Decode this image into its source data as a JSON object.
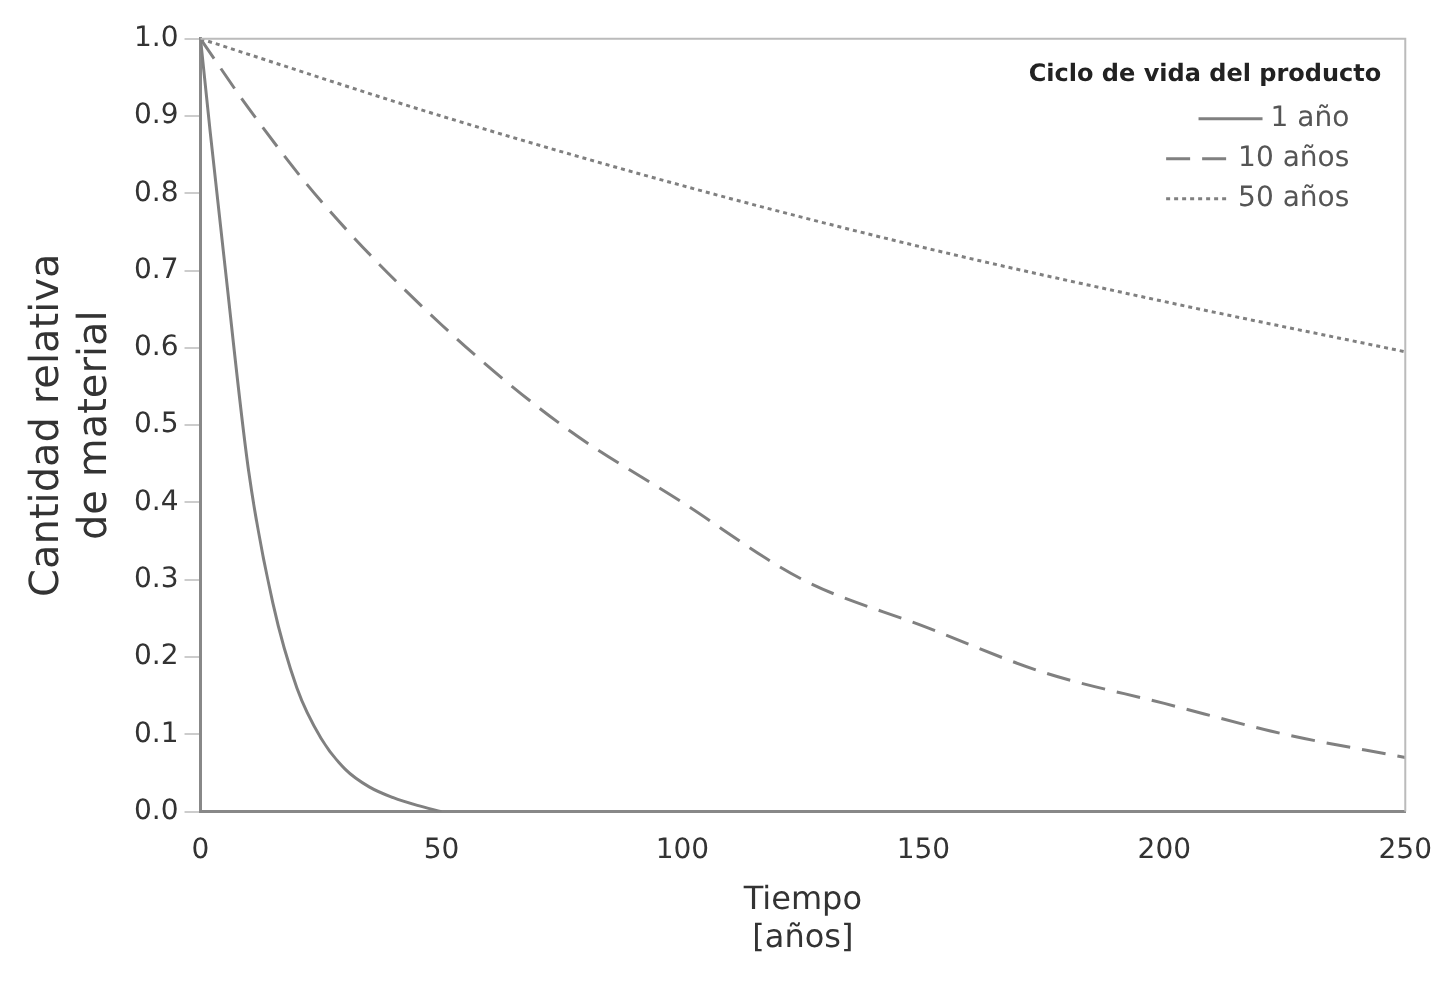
{
  "chart_data": {
    "type": "line",
    "xlabel": "Tiempo\n[años]",
    "ylabel": "Cantidad relativa\nde material",
    "legend_title": "Ciclo de vida del producto",
    "legend": "top right",
    "marker": "none",
    "grid": false,
    "xlim": [
      0,
      250
    ],
    "xticks": [
      0,
      50,
      100,
      150,
      200,
      250
    ],
    "ylim": [
      0,
      1
    ],
    "yticks": [
      {
        "value": 0,
        "label": "0.0"
      },
      {
        "value": 0.1,
        "label": "0.1"
      },
      {
        "value": 0.2,
        "label": "0.2"
      },
      {
        "value": 0.3,
        "label": "0.3"
      },
      {
        "value": 0.4,
        "label": "0.4"
      },
      {
        "value": 0.5,
        "label": "0.5"
      },
      {
        "value": 0.6,
        "label": "0.6"
      },
      {
        "value": 0.7,
        "label": "0.7"
      },
      {
        "value": 0.8,
        "label": "0.8"
      },
      {
        "value": 0.9,
        "label": "0.9"
      },
      {
        "value": 1,
        "label": "1.0"
      }
    ],
    "series": [
      {
        "name": "1 año",
        "color": "#808080",
        "line_style": "solid",
        "x": [
          0,
          2,
          5,
          10,
          15,
          20,
          25,
          30,
          35,
          40,
          45,
          50
        ],
        "values": [
          1,
          0.88,
          0.71,
          0.44,
          0.27,
          0.16,
          0.095,
          0.055,
          0.032,
          0.018,
          0.008,
          0
        ]
      },
      {
        "name": "10 años",
        "color": "#808080",
        "line_style": "dashed",
        "x": [
          0,
          10,
          25,
          50,
          75,
          100,
          125,
          150,
          175,
          200,
          225,
          250
        ],
        "values": [
          1,
          0.91,
          0.79,
          0.63,
          0.5,
          0.4,
          0.3,
          0.24,
          0.18,
          0.14,
          0.1,
          0.07
        ]
      },
      {
        "name": "50 años",
        "color": "#808080",
        "line_style": "dotted",
        "x": [
          0,
          50,
          100,
          150,
          200,
          250
        ],
        "values": [
          1,
          0.9,
          0.81,
          0.73,
          0.66,
          0.595
        ]
      }
    ]
  }
}
